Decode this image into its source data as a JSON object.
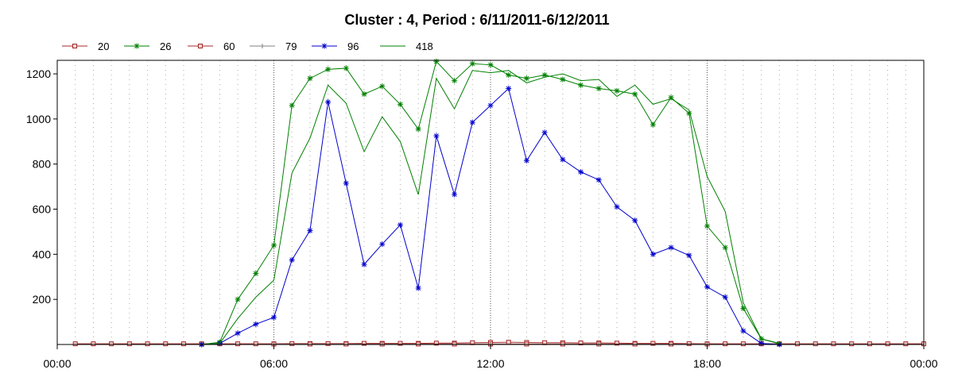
{
  "chart_data": {
    "type": "line",
    "title": "Cluster : 4, Period : 6/11/2011-6/12/2011",
    "xlabel": "",
    "ylabel": "",
    "xlim": [
      0,
      24
    ],
    "ylim": [
      0,
      1260
    ],
    "x_ticks": [
      {
        "value": 0,
        "label": "00:00"
      },
      {
        "value": 6,
        "label": "06:00"
      },
      {
        "value": 12,
        "label": "12:00"
      },
      {
        "value": 18,
        "label": "18:00"
      },
      {
        "value": 24,
        "label": "00:00"
      }
    ],
    "y_ticks": [
      200,
      400,
      600,
      800,
      1000,
      1200
    ],
    "grid": "vertical dotted every 0.5 h; heavier dotted at 06:00, 12:00, 18:00",
    "legend_placement": "top",
    "series": [
      {
        "name": "20",
        "color": "#a52a2a",
        "marker": "square",
        "points": [
          [
            0.5,
            3
          ],
          [
            1,
            3
          ],
          [
            1.5,
            3
          ],
          [
            2,
            3
          ],
          [
            2.5,
            3
          ],
          [
            3,
            3
          ],
          [
            3.5,
            3
          ],
          [
            4,
            3
          ],
          [
            4.5,
            3
          ],
          [
            5,
            3
          ],
          [
            5.5,
            3
          ],
          [
            6,
            3
          ],
          [
            6.5,
            4
          ],
          [
            7,
            4
          ],
          [
            7.5,
            4
          ],
          [
            8,
            4
          ],
          [
            8.5,
            5
          ],
          [
            9,
            5
          ],
          [
            9.5,
            5
          ],
          [
            10,
            5
          ],
          [
            10.5,
            6
          ],
          [
            11,
            6
          ],
          [
            11.5,
            8
          ],
          [
            12,
            9
          ],
          [
            12.5,
            10
          ],
          [
            13,
            9
          ],
          [
            13.5,
            8
          ],
          [
            14,
            8
          ],
          [
            14.5,
            7
          ],
          [
            15,
            7
          ],
          [
            15.5,
            6
          ],
          [
            16,
            5
          ],
          [
            16.5,
            5
          ],
          [
            17,
            5
          ],
          [
            17.5,
            4
          ],
          [
            18,
            3
          ],
          [
            18.5,
            3
          ],
          [
            19,
            3
          ],
          [
            19.5,
            3
          ],
          [
            20,
            3
          ],
          [
            20.5,
            3
          ],
          [
            21,
            3
          ],
          [
            21.5,
            3
          ],
          [
            22,
            3
          ],
          [
            22.5,
            3
          ],
          [
            23,
            3
          ],
          [
            23.5,
            3
          ],
          [
            24,
            3
          ]
        ]
      },
      {
        "name": "26",
        "color": "#008000",
        "marker": "star",
        "points": [
          [
            4,
            0
          ],
          [
            4.5,
            10
          ],
          [
            5,
            200
          ],
          [
            5.5,
            315
          ],
          [
            6,
            440
          ],
          [
            6.5,
            1060
          ],
          [
            7,
            1180
          ],
          [
            7.5,
            1220
          ],
          [
            8,
            1225
          ],
          [
            8.5,
            1110
          ],
          [
            9,
            1145
          ],
          [
            9.5,
            1065
          ],
          [
            10,
            955
          ],
          [
            10.5,
            1255
          ],
          [
            11,
            1170
          ],
          [
            11.5,
            1245
          ],
          [
            12,
            1240
          ],
          [
            12.5,
            1195
          ],
          [
            13,
            1180
          ],
          [
            13.5,
            1195
          ],
          [
            14,
            1175
          ],
          [
            14.5,
            1150
          ],
          [
            15,
            1135
          ],
          [
            15.5,
            1125
          ],
          [
            16,
            1110
          ],
          [
            16.5,
            975
          ],
          [
            17,
            1095
          ],
          [
            17.5,
            1025
          ],
          [
            18,
            525
          ],
          [
            18.5,
            430
          ],
          [
            19,
            160
          ],
          [
            19.5,
            25
          ],
          [
            20,
            3
          ]
        ]
      },
      {
        "name": "60",
        "color": "#a52a2a",
        "marker": "square",
        "points": [
          [
            6,
            2
          ],
          [
            7,
            2
          ],
          [
            8,
            2
          ],
          [
            9,
            2
          ],
          [
            10,
            2
          ],
          [
            11,
            2
          ],
          [
            12,
            2
          ],
          [
            13,
            2
          ],
          [
            14,
            2
          ],
          [
            15,
            2
          ],
          [
            16,
            2
          ],
          [
            17,
            2
          ],
          [
            18,
            2
          ]
        ]
      },
      {
        "name": "79",
        "color": "#808080",
        "marker": "plus",
        "points": [
          [
            6,
            1
          ],
          [
            9,
            1
          ],
          [
            12,
            1
          ],
          [
            15,
            1
          ],
          [
            18,
            1
          ]
        ]
      },
      {
        "name": "96",
        "color": "#0000cc",
        "marker": "star",
        "points": [
          [
            4,
            0
          ],
          [
            4.5,
            5
          ],
          [
            5,
            50
          ],
          [
            5.5,
            90
          ],
          [
            6,
            120
          ],
          [
            6.5,
            375
          ],
          [
            7,
            505
          ],
          [
            7.5,
            1075
          ],
          [
            8,
            715
          ],
          [
            8.5,
            355
          ],
          [
            9,
            445
          ],
          [
            9.5,
            530
          ],
          [
            10,
            250
          ],
          [
            10.5,
            925
          ],
          [
            11,
            665
          ],
          [
            11.5,
            985
          ],
          [
            12,
            1060
          ],
          [
            12.5,
            1135
          ],
          [
            13,
            815
          ],
          [
            13.5,
            940
          ],
          [
            14,
            820
          ],
          [
            14.5,
            765
          ],
          [
            15,
            730
          ],
          [
            15.5,
            610
          ],
          [
            16,
            550
          ],
          [
            16.5,
            400
          ],
          [
            17,
            430
          ],
          [
            17.5,
            395
          ],
          [
            18,
            255
          ],
          [
            18.5,
            210
          ],
          [
            19,
            60
          ],
          [
            19.5,
            5
          ],
          [
            20,
            0
          ]
        ]
      },
      {
        "name": "418",
        "color": "#008000",
        "marker": "none",
        "points": [
          [
            4,
            0
          ],
          [
            4.5,
            5
          ],
          [
            5,
            115
          ],
          [
            5.5,
            210
          ],
          [
            6,
            285
          ],
          [
            6.5,
            760
          ],
          [
            7,
            915
          ],
          [
            7.5,
            1150
          ],
          [
            8,
            1070
          ],
          [
            8.5,
            855
          ],
          [
            9,
            1010
          ],
          [
            9.5,
            900
          ],
          [
            10,
            665
          ],
          [
            10.5,
            1180
          ],
          [
            11,
            1045
          ],
          [
            11.5,
            1215
          ],
          [
            12,
            1205
          ],
          [
            12.5,
            1215
          ],
          [
            13,
            1160
          ],
          [
            13.5,
            1185
          ],
          [
            14,
            1200
          ],
          [
            14.5,
            1170
          ],
          [
            15,
            1175
          ],
          [
            15.5,
            1100
          ],
          [
            16,
            1150
          ],
          [
            16.5,
            1065
          ],
          [
            17,
            1090
          ],
          [
            17.5,
            1040
          ],
          [
            18,
            745
          ],
          [
            18.5,
            590
          ],
          [
            19,
            185
          ],
          [
            19.5,
            25
          ],
          [
            20,
            5
          ]
        ]
      }
    ]
  }
}
